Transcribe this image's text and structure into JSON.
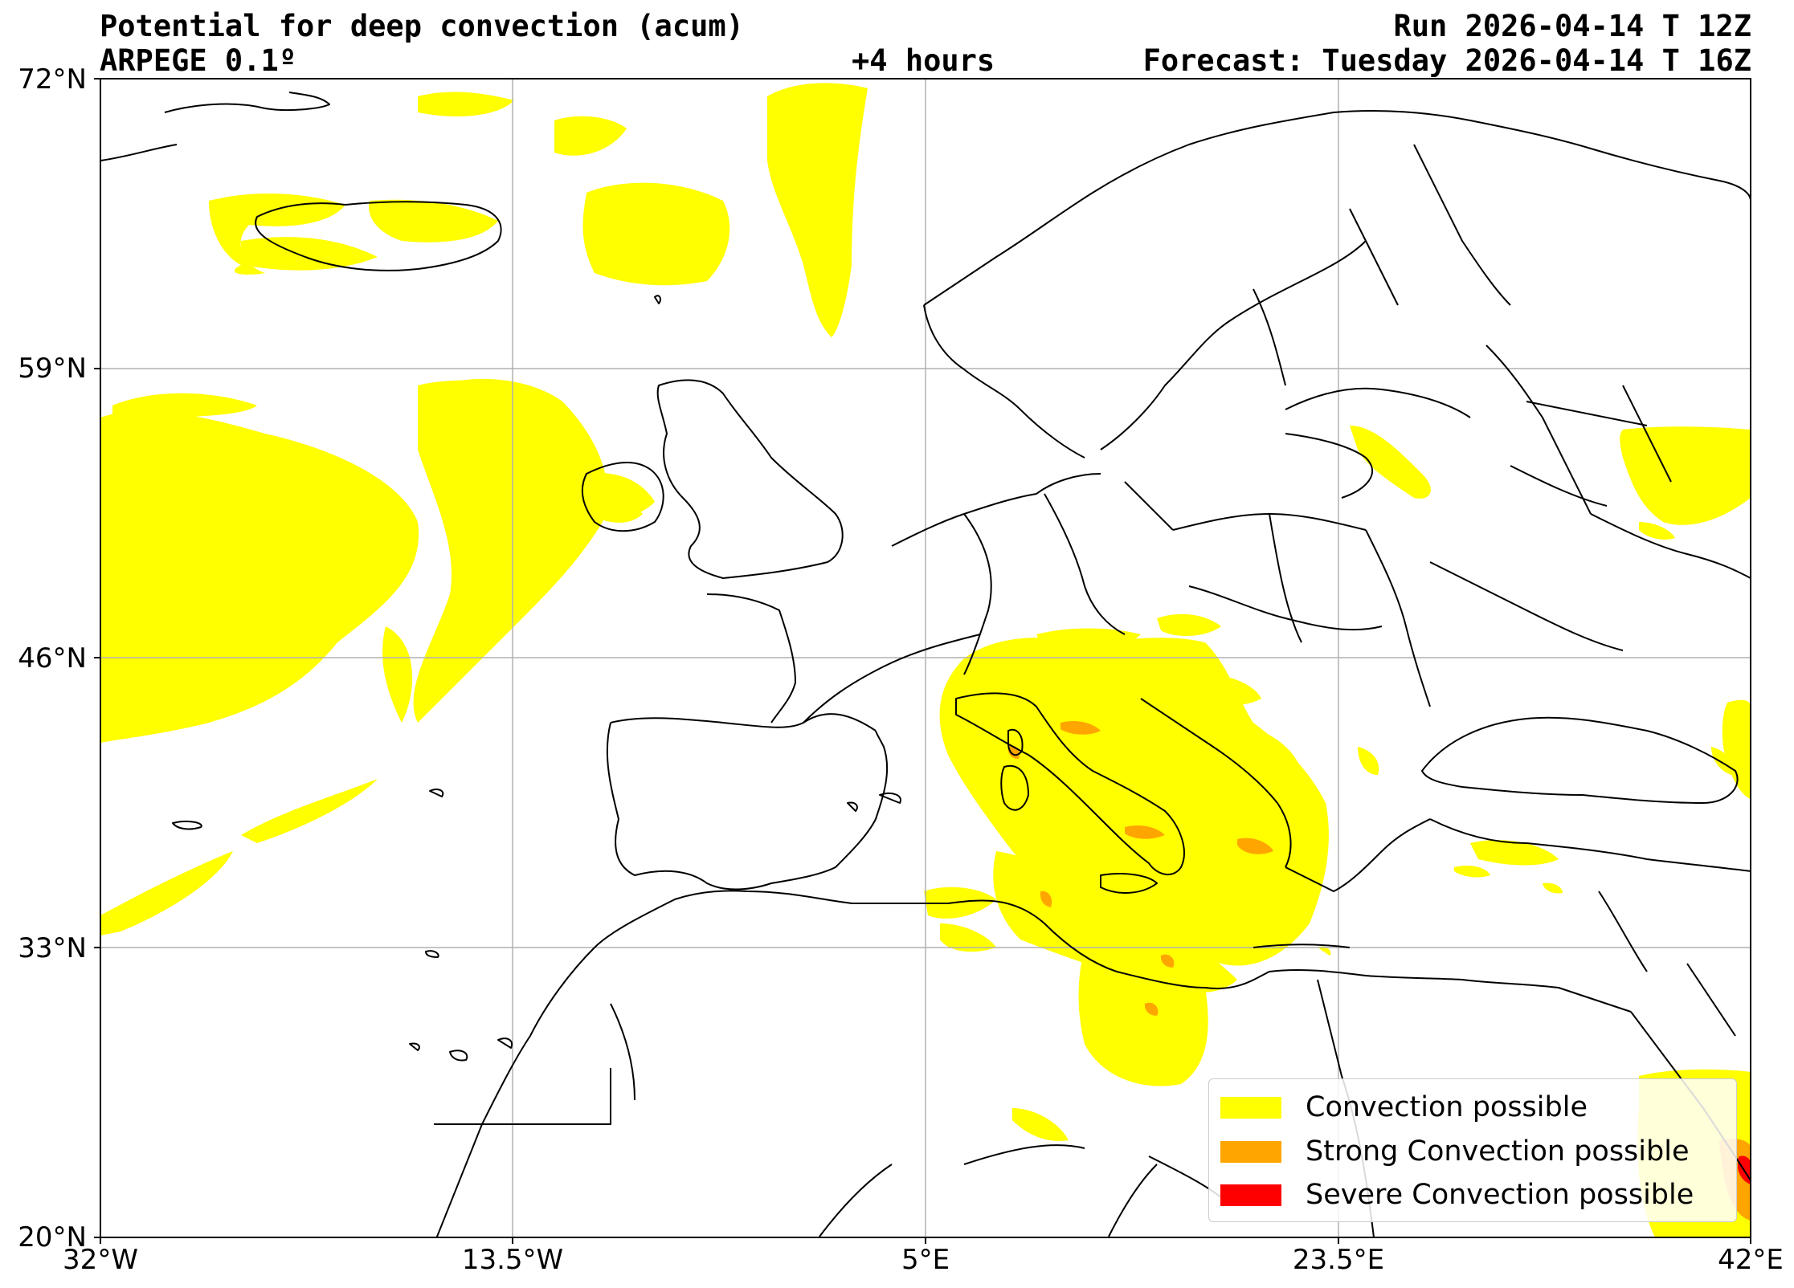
{
  "header": {
    "title": "Potential for deep convection (acum)",
    "model": "ARPEGE 0.1º",
    "lead": "+4 hours",
    "run": "Run 2026-04-14 T 12Z",
    "forecast": "Forecast: Tuesday 2026-04-14 T 16Z"
  },
  "axes": {
    "lat_labels": [
      "72°N",
      "59°N",
      "46°N",
      "33°N",
      "20°N"
    ],
    "lon_labels": [
      "32°W",
      "13.5°W",
      "5°E",
      "23.5°E",
      "42°E"
    ],
    "lat_range": [
      20,
      72
    ],
    "lon_range": [
      -32,
      42
    ],
    "gridlines": true
  },
  "legend": {
    "placement": "bottom-right",
    "items": [
      {
        "label": "Convection possible",
        "color": "#ffff00"
      },
      {
        "label": "Strong Convection possible",
        "color": "#ffa500"
      },
      {
        "label": "Severe Convection possible",
        "color": "#ff0000"
      }
    ]
  },
  "colors": {
    "possible": "#ffff00",
    "strong": "#ffa500",
    "severe": "#ff0000",
    "coast": "#000000",
    "grid": "#b0b0b0"
  }
}
